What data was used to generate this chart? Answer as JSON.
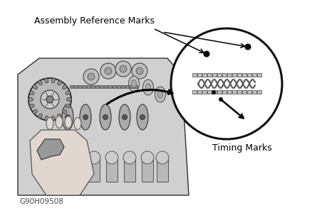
{
  "bg_color": "#ffffff",
  "label_assembly": "Assembly Reference Marks",
  "label_timing": "Timing Marks",
  "label_code": "G90H09508",
  "fig_width": 4.38,
  "fig_height": 3.0,
  "dpi": 100
}
